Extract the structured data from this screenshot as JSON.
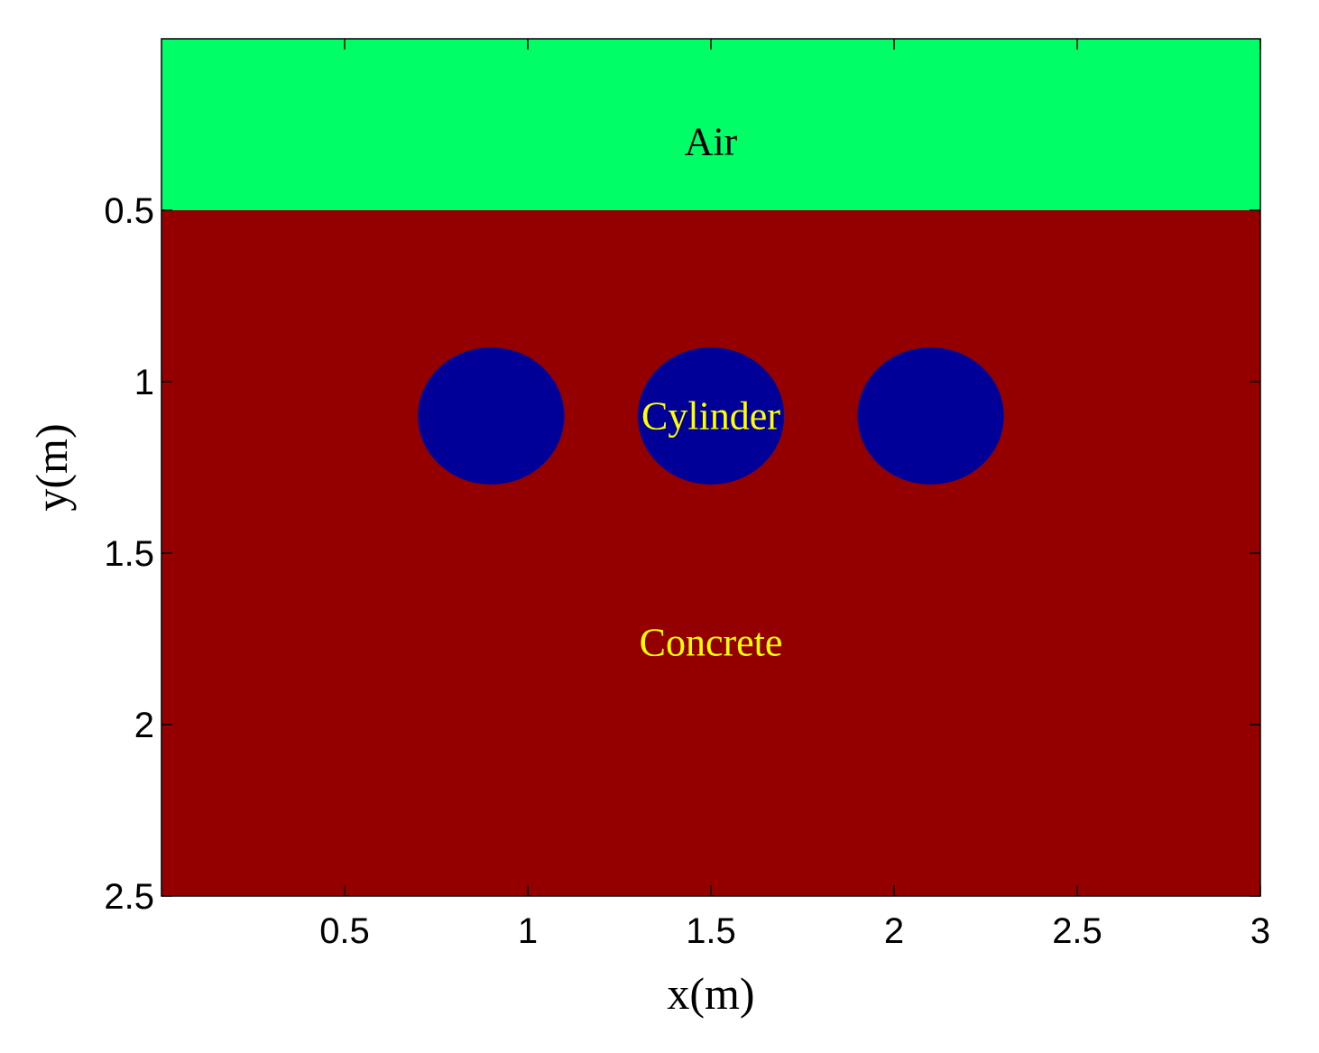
{
  "chart_data": {
    "type": "heatmap",
    "title": "",
    "xlabel": "x(m)",
    "ylabel": "y(m)",
    "xlim": [
      0,
      3
    ],
    "ylim": [
      2.5,
      0
    ],
    "y_axis_reversed": true,
    "grid": false,
    "x_ticks": [
      0.5,
      1,
      1.5,
      2,
      2.5,
      3
    ],
    "x_tick_labels": [
      "0.5",
      "1",
      "1.5",
      "2",
      "2.5",
      "3"
    ],
    "y_ticks": [
      0.5,
      1,
      1.5,
      2,
      2.5
    ],
    "y_tick_labels": [
      "0.5",
      "1",
      "1.5",
      "2",
      "2.5"
    ],
    "regions": [
      {
        "label": "Air",
        "x_range": [
          0,
          3
        ],
        "y_range": [
          0,
          0.5
        ],
        "color": "#00ff66",
        "label_color": "#000000"
      },
      {
        "label": "Concrete",
        "x_range": [
          0,
          3
        ],
        "y_range": [
          0.5,
          2.5
        ],
        "color": "#940000",
        "label_color": "#ffff00"
      }
    ],
    "cylinders": {
      "label": "Cylinder",
      "color": "#000099",
      "label_color": "#ffff00",
      "center_y": 1.1,
      "radius": 0.2,
      "centers_x": [
        0.9,
        1.5,
        2.1
      ]
    },
    "annotations": [
      {
        "text": "Air",
        "x": 1.5,
        "y": 0.3,
        "color": "#000000"
      },
      {
        "text": "Cylinder",
        "x": 1.5,
        "y": 1.1,
        "color": "#ffff00"
      },
      {
        "text": "Concrete",
        "x": 1.5,
        "y": 1.76,
        "color": "#ffff00"
      }
    ]
  }
}
